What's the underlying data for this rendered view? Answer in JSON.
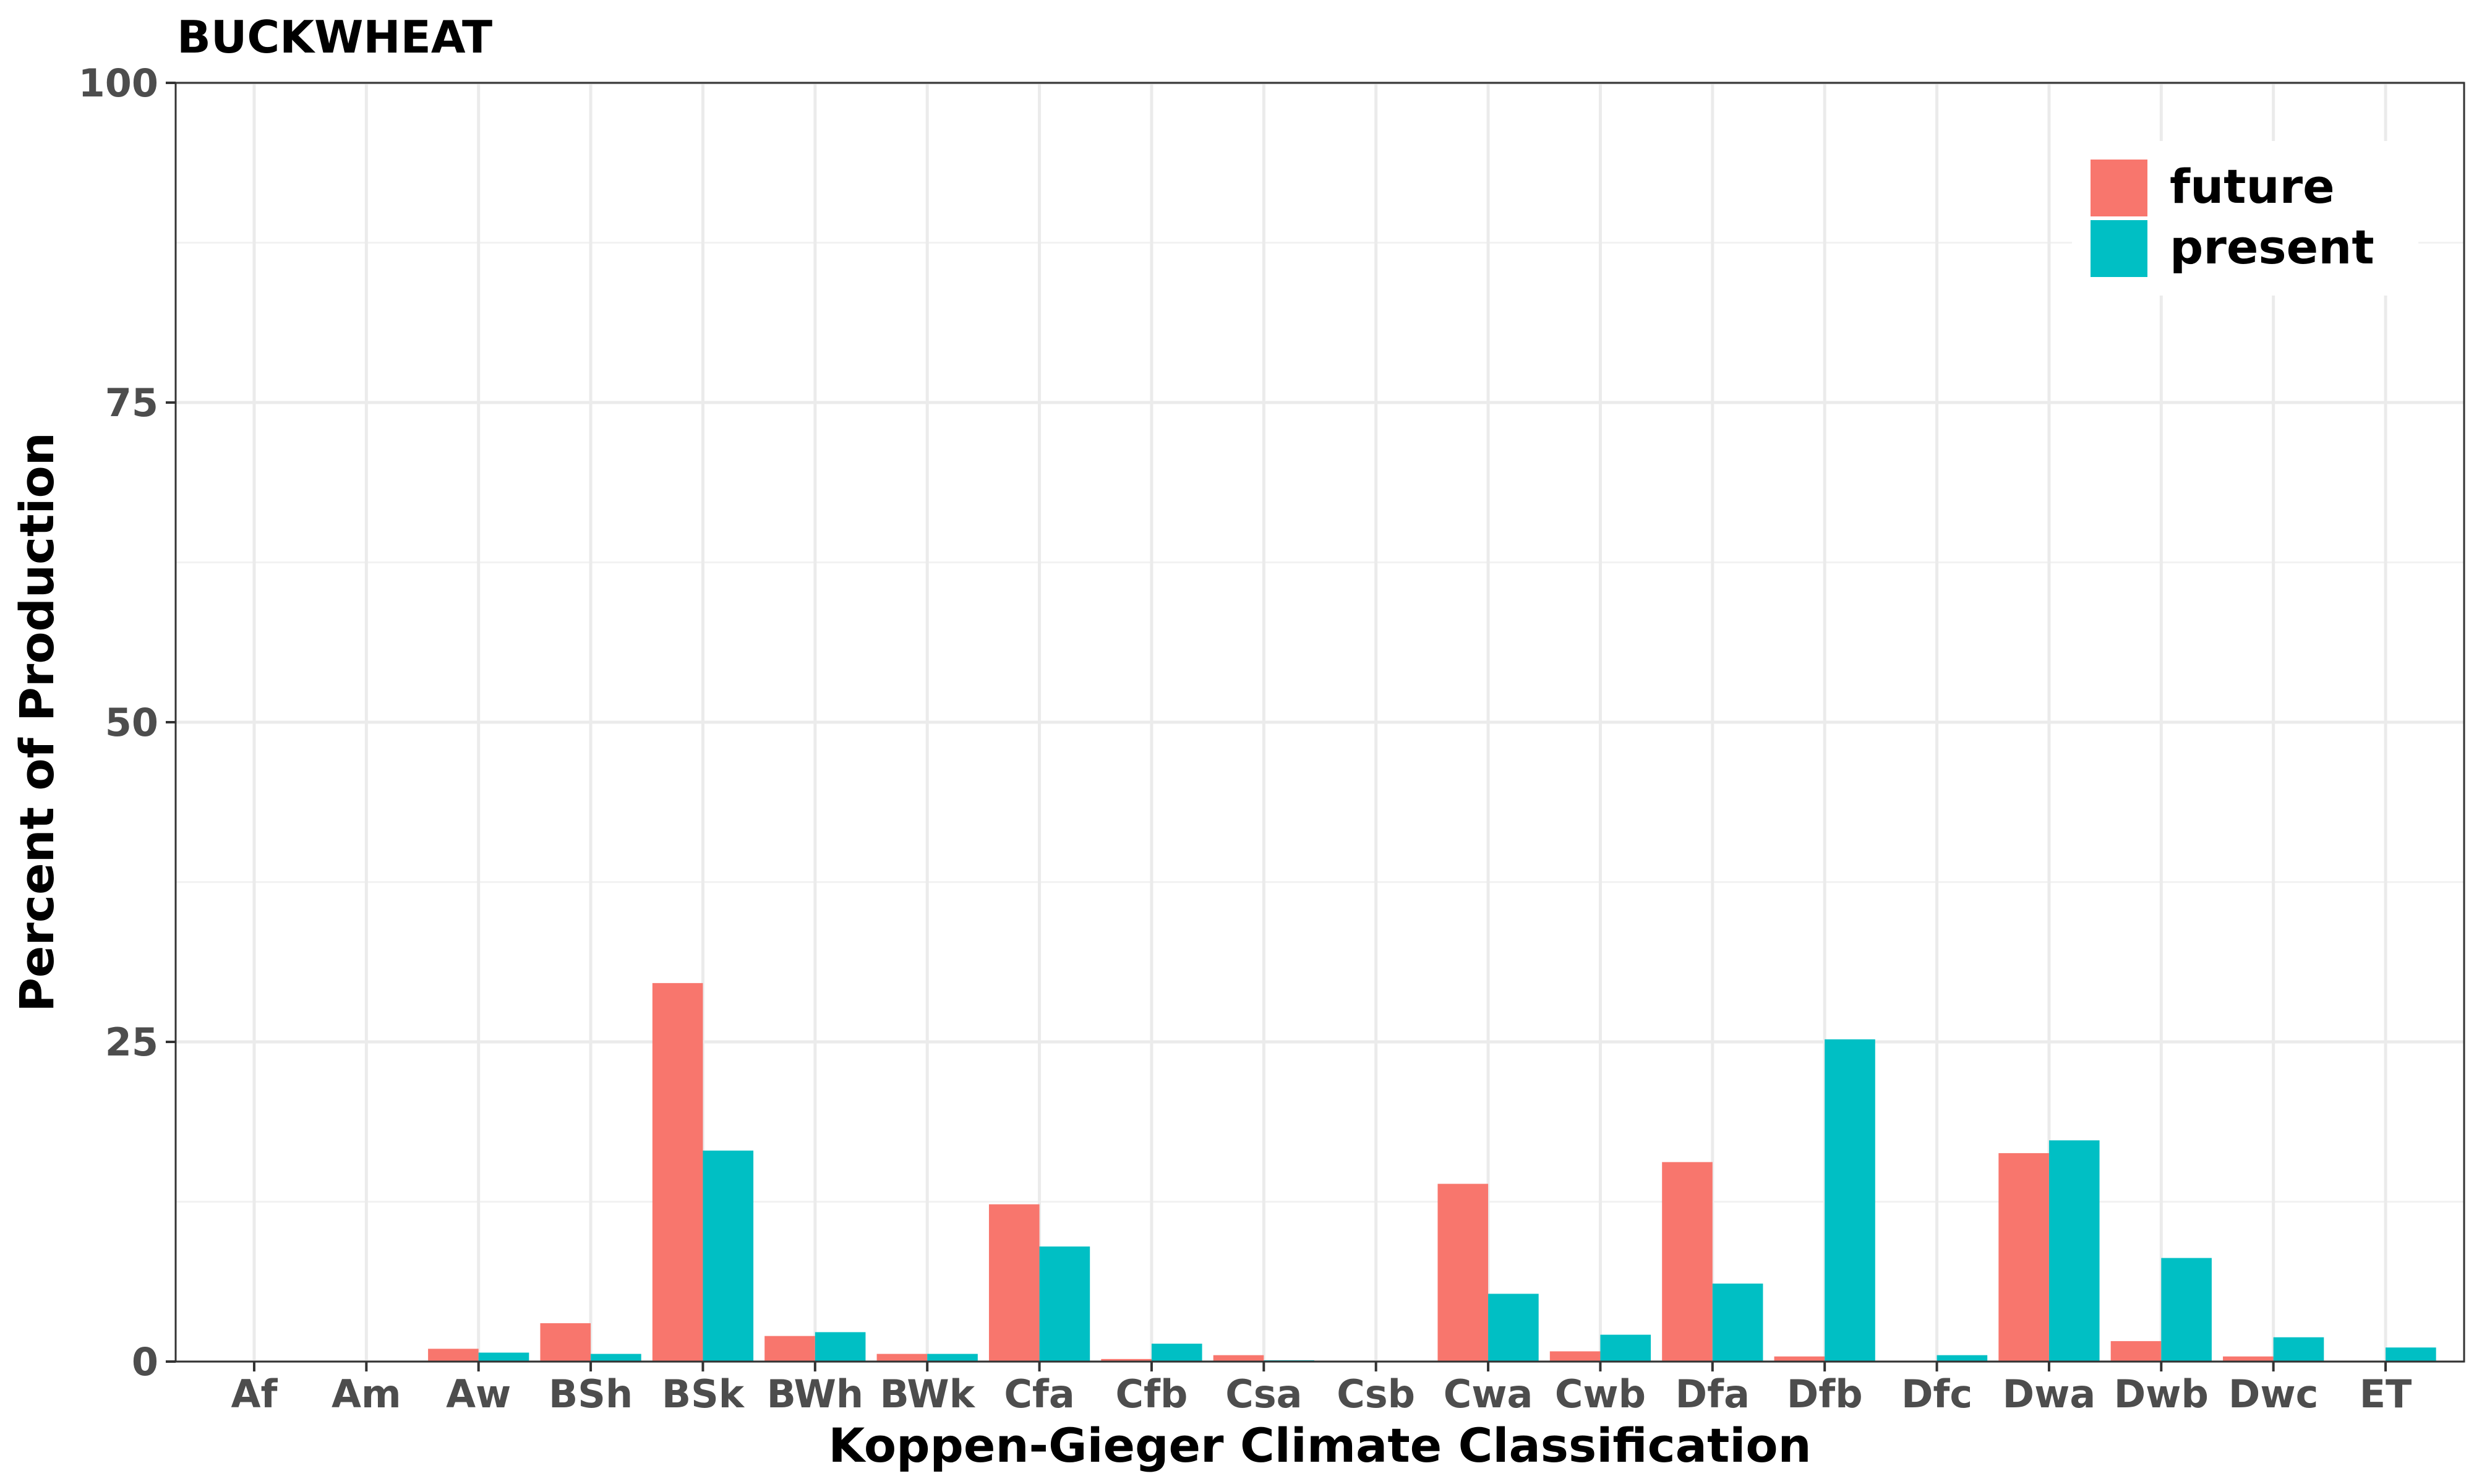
{
  "chart_data": {
    "type": "bar",
    "title": "BUCKWHEAT",
    "xlabel": "Koppen-Gieger Climate Classification",
    "ylabel": "Percent of Production",
    "ylim": [
      0,
      100
    ],
    "yticks": [
      "0",
      "25",
      "50",
      "75",
      "100"
    ],
    "categories": [
      "Af",
      "Am",
      "Aw",
      "BSh",
      "BSk",
      "BWh",
      "BWk",
      "Cfa",
      "Cfb",
      "Csa",
      "Csb",
      "Cwa",
      "Cwb",
      "Dfa",
      "Dfb",
      "Dfc",
      "Dwa",
      "Dwb",
      "Dwc",
      "ET"
    ],
    "series": [
      {
        "name": "future",
        "color": "#F8766D",
        "values": [
          0,
          0,
          1.0,
          3.0,
          29.6,
          2.0,
          0.6,
          12.3,
          0.2,
          0.5,
          0,
          13.9,
          0.8,
          15.6,
          0.4,
          0,
          16.3,
          1.6,
          0.4,
          0
        ]
      },
      {
        "name": "present",
        "color": "#00BFC4",
        "values": [
          0,
          0,
          0.7,
          0.6,
          16.5,
          2.3,
          0.6,
          9.0,
          1.4,
          0.1,
          0,
          5.3,
          2.1,
          6.1,
          25.2,
          0.5,
          17.3,
          8.1,
          1.9,
          1.1
        ]
      }
    ],
    "grid": true,
    "legend_position": "top-right"
  }
}
